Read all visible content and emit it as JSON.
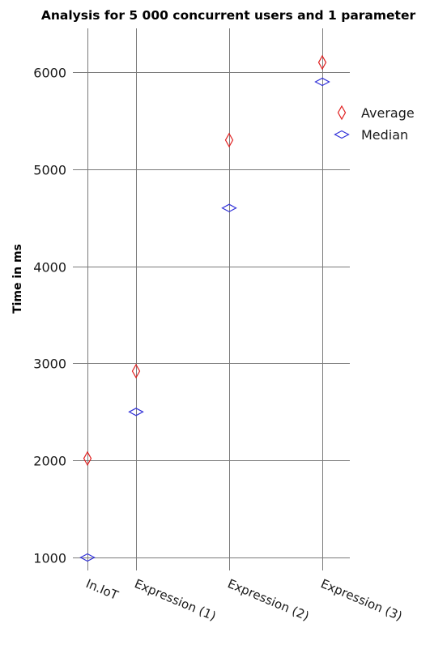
{
  "chart_data": {
    "type": "scatter",
    "title": "Analysis for 5 000 concurrent users and 1 parameter",
    "xlabel": "",
    "ylabel": "Time in ms",
    "categories": [
      "In.IoT",
      "Expression (1)",
      "Expression (2)",
      "Expression (3)"
    ],
    "ylim": [
      1000,
      6000
    ],
    "yticks": [
      "1000",
      "2000",
      "3000",
      "4000",
      "5000",
      "6000"
    ],
    "grid": true,
    "legend_position": "top-right",
    "series": [
      {
        "name": "Average",
        "color": "#e02020",
        "marker": "diamond-tall",
        "values": [
          2020,
          2920,
          5300,
          6100
        ]
      },
      {
        "name": "Median",
        "color": "#3030d8",
        "marker": "diamond-wide",
        "values": [
          1000,
          2500,
          4600,
          5900
        ]
      }
    ]
  }
}
